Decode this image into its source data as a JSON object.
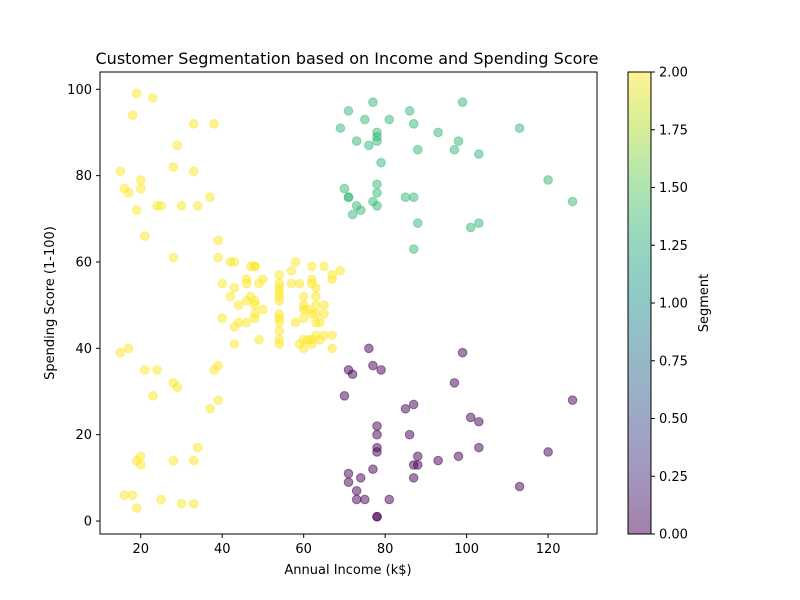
{
  "chart_data": {
    "type": "scatter",
    "title": "Customer Segmentation based on Income and Spending Score",
    "xlabel": "Annual Income (k$)",
    "ylabel": "Spending Score (1-100)",
    "xlim": [
      10,
      132
    ],
    "ylim": [
      -3,
      104
    ],
    "xticks": [
      20,
      40,
      60,
      80,
      100,
      120
    ],
    "yticks": [
      0,
      20,
      40,
      60,
      80,
      100
    ],
    "grid": false,
    "marker_alpha": 0.5,
    "colorbar": {
      "label": "Segment",
      "range": [
        0,
        2
      ],
      "ticks": [
        "0.00",
        "0.25",
        "0.50",
        "0.75",
        "1.00",
        "1.25",
        "1.50",
        "1.75",
        "2.00"
      ],
      "colormap": "viridis",
      "colors": [
        "#440154",
        "#482878",
        "#3e4989",
        "#31688e",
        "#26828e",
        "#1f9e89",
        "#35b779",
        "#6ece58",
        "#b5de2b",
        "#fde725"
      ]
    },
    "series": [
      {
        "segment": 2,
        "color": "#fde725",
        "points": [
          [
            15,
            39
          ],
          [
            15,
            81
          ],
          [
            16,
            6
          ],
          [
            16,
            77
          ],
          [
            17,
            40
          ],
          [
            17,
            76
          ],
          [
            18,
            6
          ],
          [
            18,
            94
          ],
          [
            19,
            3
          ],
          [
            19,
            72
          ],
          [
            19,
            14
          ],
          [
            19,
            99
          ],
          [
            20,
            15
          ],
          [
            20,
            77
          ],
          [
            20,
            13
          ],
          [
            20,
            79
          ],
          [
            21,
            35
          ],
          [
            21,
            66
          ],
          [
            23,
            29
          ],
          [
            23,
            98
          ],
          [
            24,
            35
          ],
          [
            24,
            73
          ],
          [
            25,
            5
          ],
          [
            25,
            73
          ],
          [
            28,
            14
          ],
          [
            28,
            82
          ],
          [
            28,
            32
          ],
          [
            28,
            61
          ],
          [
            29,
            31
          ],
          [
            29,
            87
          ],
          [
            30,
            4
          ],
          [
            30,
            73
          ],
          [
            33,
            4
          ],
          [
            33,
            92
          ],
          [
            33,
            14
          ],
          [
            33,
            81
          ],
          [
            34,
            17
          ],
          [
            34,
            73
          ],
          [
            37,
            26
          ],
          [
            37,
            75
          ],
          [
            38,
            35
          ],
          [
            38,
            92
          ],
          [
            39,
            36
          ],
          [
            39,
            61
          ],
          [
            39,
            28
          ],
          [
            39,
            65
          ],
          [
            40,
            55
          ],
          [
            40,
            47
          ],
          [
            42,
            52
          ],
          [
            42,
            60
          ],
          [
            43,
            60
          ],
          [
            43,
            54
          ],
          [
            43,
            45
          ],
          [
            43,
            41
          ],
          [
            44,
            50
          ],
          [
            44,
            46
          ],
          [
            46,
            51
          ],
          [
            46,
            46
          ],
          [
            46,
            56
          ],
          [
            46,
            55
          ],
          [
            47,
            52
          ],
          [
            47,
            59
          ],
          [
            48,
            51
          ],
          [
            48,
            59
          ],
          [
            48,
            50
          ],
          [
            48,
            48
          ],
          [
            48,
            59
          ],
          [
            48,
            47
          ],
          [
            49,
            55
          ],
          [
            49,
            42
          ],
          [
            50,
            49
          ],
          [
            50,
            56
          ],
          [
            54,
            47
          ],
          [
            54,
            54
          ],
          [
            54,
            53
          ],
          [
            54,
            48
          ],
          [
            54,
            52
          ],
          [
            54,
            42
          ],
          [
            54,
            51
          ],
          [
            54,
            55
          ],
          [
            54,
            41
          ],
          [
            54,
            44
          ],
          [
            54,
            57
          ],
          [
            54,
            46
          ],
          [
            57,
            58
          ],
          [
            57,
            55
          ],
          [
            58,
            60
          ],
          [
            58,
            46
          ],
          [
            59,
            55
          ],
          [
            59,
            41
          ],
          [
            60,
            49
          ],
          [
            60,
            40
          ],
          [
            60,
            42
          ],
          [
            60,
            52
          ],
          [
            60,
            47
          ],
          [
            60,
            50
          ],
          [
            61,
            42
          ],
          [
            61,
            49
          ],
          [
            62,
            41
          ],
          [
            62,
            48
          ],
          [
            62,
            59
          ],
          [
            62,
            55
          ],
          [
            62,
            56
          ],
          [
            62,
            42
          ],
          [
            63,
            50
          ],
          [
            63,
            46
          ],
          [
            63,
            43
          ],
          [
            63,
            48
          ],
          [
            63,
            52
          ],
          [
            63,
            54
          ],
          [
            64,
            42
          ],
          [
            64,
            46
          ],
          [
            65,
            48
          ],
          [
            65,
            50
          ],
          [
            65,
            43
          ],
          [
            65,
            59
          ],
          [
            67,
            43
          ],
          [
            67,
            57
          ],
          [
            67,
            56
          ],
          [
            67,
            40
          ],
          [
            69,
            58
          ]
        ]
      },
      {
        "segment": 1,
        "color": "#35b779",
        "points": [
          [
            69,
            91
          ],
          [
            70,
            77
          ],
          [
            71,
            95
          ],
          [
            71,
            75
          ],
          [
            71,
            75
          ],
          [
            72,
            71
          ],
          [
            73,
            88
          ],
          [
            73,
            73
          ],
          [
            74,
            72
          ],
          [
            75,
            93
          ],
          [
            76,
            87
          ],
          [
            77,
            97
          ],
          [
            77,
            74
          ],
          [
            78,
            90
          ],
          [
            78,
            88
          ],
          [
            78,
            76
          ],
          [
            78,
            89
          ],
          [
            78,
            78
          ],
          [
            78,
            73
          ],
          [
            79,
            83
          ],
          [
            81,
            93
          ],
          [
            85,
            75
          ],
          [
            86,
            95
          ],
          [
            87,
            63
          ],
          [
            87,
            75
          ],
          [
            87,
            92
          ],
          [
            88,
            86
          ],
          [
            88,
            69
          ],
          [
            93,
            90
          ],
          [
            97,
            86
          ],
          [
            98,
            88
          ],
          [
            99,
            97
          ],
          [
            101,
            68
          ],
          [
            103,
            85
          ],
          [
            103,
            69
          ],
          [
            113,
            91
          ],
          [
            120,
            79
          ],
          [
            126,
            74
          ]
        ]
      },
      {
        "segment": 0,
        "color": "#440154",
        "points": [
          [
            70,
            29
          ],
          [
            71,
            35
          ],
          [
            71,
            11
          ],
          [
            71,
            9
          ],
          [
            72,
            34
          ],
          [
            73,
            5
          ],
          [
            73,
            7
          ],
          [
            74,
            10
          ],
          [
            75,
            5
          ],
          [
            76,
            40
          ],
          [
            77,
            12
          ],
          [
            77,
            36
          ],
          [
            78,
            22
          ],
          [
            78,
            17
          ],
          [
            78,
            20
          ],
          [
            78,
            16
          ],
          [
            78,
            1
          ],
          [
            78,
            1
          ],
          [
            79,
            35
          ],
          [
            81,
            5
          ],
          [
            85,
            26
          ],
          [
            86,
            20
          ],
          [
            87,
            27
          ],
          [
            87,
            13
          ],
          [
            87,
            10
          ],
          [
            88,
            13
          ],
          [
            88,
            15
          ],
          [
            93,
            14
          ],
          [
            97,
            32
          ],
          [
            98,
            15
          ],
          [
            99,
            39
          ],
          [
            101,
            24
          ],
          [
            103,
            17
          ],
          [
            103,
            23
          ],
          [
            113,
            8
          ],
          [
            120,
            16
          ],
          [
            126,
            28
          ]
        ]
      }
    ]
  }
}
